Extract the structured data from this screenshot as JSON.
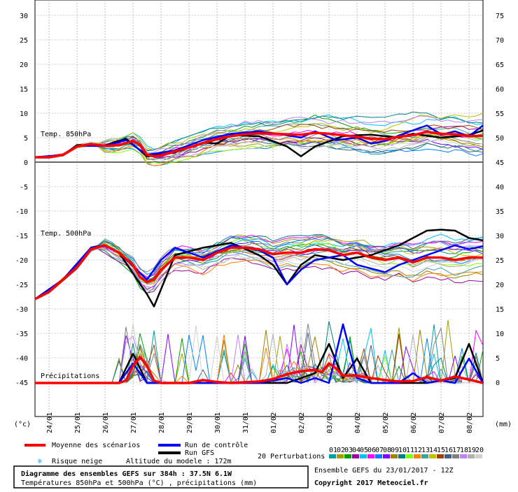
{
  "chart_data": [
    {
      "type": "line",
      "title": "Temp. 850hPa",
      "ylabel": "(°c)",
      "y_ticks": [
        0,
        5,
        10,
        15,
        20,
        25,
        30
      ],
      "x_tick_labels": [
        "24/01",
        "25/01",
        "26/01",
        "27/01",
        "28/01",
        "29/01",
        "30/01",
        "31/01",
        "01/02",
        "02/02",
        "03/02",
        "04/02",
        "05/02",
        "06/02",
        "07/02",
        "08/02"
      ],
      "x_hours": [
        0,
        384
      ],
      "series": [
        {
          "name": "Moyenne des scénarios",
          "color": "#ff0000",
          "points": [
            [
              0,
              1
            ],
            [
              12,
              1
            ],
            [
              24,
              1.5
            ],
            [
              36,
              3.2
            ],
            [
              48,
              3.7
            ],
            [
              60,
              3.3
            ],
            [
              72,
              3.5
            ],
            [
              84,
              4.3
            ],
            [
              90,
              3.5
            ],
            [
              96,
              1.5
            ],
            [
              102,
              1.2
            ],
            [
              108,
              1.4
            ],
            [
              120,
              2.2
            ],
            [
              132,
              3
            ],
            [
              144,
              3.9
            ],
            [
              156,
              4.7
            ],
            [
              168,
              5.3
            ],
            [
              180,
              5.7
            ],
            [
              192,
              5.9
            ],
            [
              204,
              5.8
            ],
            [
              216,
              5.7
            ],
            [
              228,
              5.6
            ],
            [
              240,
              6
            ],
            [
              252,
              5.8
            ],
            [
              264,
              5.5
            ],
            [
              276,
              5.2
            ],
            [
              288,
              4.8
            ],
            [
              300,
              4.7
            ],
            [
              312,
              5.2
            ],
            [
              324,
              5.5
            ],
            [
              336,
              6.2
            ],
            [
              348,
              5.8
            ],
            [
              360,
              5.7
            ],
            [
              372,
              5.3
            ],
            [
              384,
              5.4
            ]
          ]
        },
        {
          "name": "Run de contrôle",
          "color": "#0000ff",
          "points": [
            [
              0,
              1
            ],
            [
              24,
              1.5
            ],
            [
              36,
              3.3
            ],
            [
              60,
              3.3
            ],
            [
              78,
              4.5
            ],
            [
              96,
              1.5
            ],
            [
              120,
              2.4
            ],
            [
              144,
              4.5
            ],
            [
              168,
              5.8
            ],
            [
              192,
              6.3
            ],
            [
              216,
              5.5
            ],
            [
              228,
              5
            ],
            [
              240,
              6.3
            ],
            [
              258,
              4.5
            ],
            [
              276,
              5
            ],
            [
              288,
              3.8
            ],
            [
              300,
              4.3
            ],
            [
              318,
              6
            ],
            [
              336,
              7.5
            ],
            [
              348,
              5.6
            ],
            [
              360,
              6.3
            ],
            [
              372,
              5.3
            ],
            [
              384,
              7.5
            ]
          ]
        },
        {
          "name": "Run GFS",
          "color": "#000000",
          "points": [
            [
              0,
              1
            ],
            [
              24,
              1.4
            ],
            [
              36,
              3.5
            ],
            [
              60,
              3.4
            ],
            [
              78,
              4.8
            ],
            [
              96,
              1.2
            ],
            [
              120,
              2
            ],
            [
              144,
              4
            ],
            [
              156,
              3.8
            ],
            [
              168,
              5.5
            ],
            [
              192,
              5.3
            ],
            [
              216,
              3.2
            ],
            [
              228,
              1.2
            ],
            [
              240,
              3.2
            ],
            [
              264,
              5.3
            ],
            [
              276,
              5.5
            ],
            [
              288,
              5.6
            ],
            [
              312,
              5
            ],
            [
              324,
              5.8
            ],
            [
              348,
              5
            ],
            [
              372,
              5.5
            ],
            [
              384,
              6.5
            ]
          ]
        }
      ]
    },
    {
      "type": "line",
      "title": "Temp. 500hPa",
      "y_ticks": [
        -45,
        -40,
        -35,
        -30,
        -25,
        -20,
        -15,
        -10,
        -5
      ],
      "series": [
        {
          "name": "Moyenne des scénarios",
          "color": "#ff0000",
          "points": [
            [
              0,
              -28
            ],
            [
              12,
              -26.5
            ],
            [
              24,
              -24
            ],
            [
              36,
              -21.5
            ],
            [
              48,
              -17.8
            ],
            [
              60,
              -17
            ],
            [
              72,
              -18.5
            ],
            [
              84,
              -21
            ],
            [
              90,
              -23.5
            ],
            [
              96,
              -24.5
            ],
            [
              102,
              -24
            ],
            [
              108,
              -22
            ],
            [
              120,
              -19.5
            ],
            [
              132,
              -19.5
            ],
            [
              144,
              -20
            ],
            [
              156,
              -18.5
            ],
            [
              168,
              -17.5
            ],
            [
              180,
              -17.5
            ],
            [
              192,
              -17.8
            ],
            [
              204,
              -18.8
            ],
            [
              216,
              -18.5
            ],
            [
              228,
              -18.5
            ],
            [
              240,
              -17.8
            ],
            [
              252,
              -18
            ],
            [
              264,
              -19
            ],
            [
              276,
              -18.5
            ],
            [
              288,
              -19.5
            ],
            [
              300,
              -20
            ],
            [
              312,
              -19.5
            ],
            [
              324,
              -20.5
            ],
            [
              336,
              -19.5
            ],
            [
              348,
              -19.5
            ],
            [
              360,
              -20
            ],
            [
              372,
              -19.5
            ],
            [
              384,
              -19.5
            ]
          ]
        },
        {
          "name": "Run de contrôle",
          "color": "#0000ff",
          "points": [
            [
              0,
              -28
            ],
            [
              24,
              -24
            ],
            [
              48,
              -17.5
            ],
            [
              60,
              -17
            ],
            [
              72,
              -18.5
            ],
            [
              96,
              -24
            ],
            [
              108,
              -20
            ],
            [
              120,
              -17.5
            ],
            [
              144,
              -19.5
            ],
            [
              168,
              -17
            ],
            [
              192,
              -18
            ],
            [
              204,
              -19.5
            ],
            [
              216,
              -25
            ],
            [
              228,
              -22
            ],
            [
              240,
              -20
            ],
            [
              264,
              -19
            ],
            [
              276,
              -21
            ],
            [
              300,
              -22.5
            ],
            [
              312,
              -21
            ],
            [
              336,
              -19
            ],
            [
              360,
              -17
            ],
            [
              372,
              -17.8
            ],
            [
              384,
              -17.2
            ]
          ]
        },
        {
          "name": "Run GFS",
          "color": "#000000",
          "points": [
            [
              0,
              -28
            ],
            [
              24,
              -24
            ],
            [
              48,
              -17.5
            ],
            [
              60,
              -17
            ],
            [
              72,
              -18.5
            ],
            [
              96,
              -27
            ],
            [
              102,
              -29.5
            ],
            [
              120,
              -19
            ],
            [
              144,
              -17.5
            ],
            [
              168,
              -16.5
            ],
            [
              192,
              -19
            ],
            [
              204,
              -21
            ],
            [
              216,
              -25
            ],
            [
              228,
              -21
            ],
            [
              240,
              -19
            ],
            [
              264,
              -20
            ],
            [
              288,
              -19
            ],
            [
              312,
              -17
            ],
            [
              336,
              -14
            ],
            [
              348,
              -13.8
            ],
            [
              360,
              -14
            ],
            [
              372,
              -15.5
            ],
            [
              384,
              -16
            ]
          ]
        }
      ]
    },
    {
      "type": "line",
      "title": "Précipitations",
      "ylabel": "(mm)",
      "y_ticks": [
        0,
        5,
        10,
        15,
        20,
        25,
        30,
        35,
        40,
        45,
        50,
        55,
        60,
        65,
        70,
        75
      ],
      "series": [
        {
          "name": "Moyenne des scénarios",
          "color": "#ff0000",
          "points": [
            [
              0,
              0
            ],
            [
              60,
              0
            ],
            [
              72,
              0
            ],
            [
              78,
              0.5
            ],
            [
              84,
              3.5
            ],
            [
              90,
              5.3
            ],
            [
              96,
              3.5
            ],
            [
              102,
              0.5
            ],
            [
              108,
              0
            ],
            [
              132,
              0
            ],
            [
              144,
              0.6
            ],
            [
              156,
              0.2
            ],
            [
              168,
              0
            ],
            [
              192,
              0.3
            ],
            [
              204,
              0.8
            ],
            [
              216,
              1.8
            ],
            [
              228,
              2.4
            ],
            [
              240,
              2.7
            ],
            [
              246,
              2.2
            ],
            [
              252,
              4
            ],
            [
              258,
              3
            ],
            [
              264,
              1.5
            ],
            [
              276,
              1.5
            ],
            [
              288,
              1
            ],
            [
              300,
              0.6
            ],
            [
              312,
              0.3
            ],
            [
              324,
              0.4
            ],
            [
              336,
              1.2
            ],
            [
              348,
              0.5
            ],
            [
              360,
              1.3
            ],
            [
              372,
              0.7
            ],
            [
              384,
              0
            ]
          ]
        },
        {
          "name": "Run de contrôle",
          "color": "#0000ff",
          "points": [
            [
              0,
              0
            ],
            [
              72,
              0
            ],
            [
              84,
              4
            ],
            [
              96,
              0
            ],
            [
              168,
              0
            ],
            [
              192,
              0
            ],
            [
              216,
              1
            ],
            [
              228,
              0
            ],
            [
              240,
              1
            ],
            [
              252,
              0
            ],
            [
              264,
              12
            ],
            [
              276,
              1
            ],
            [
              288,
              0
            ],
            [
              312,
              0
            ],
            [
              324,
              2
            ],
            [
              336,
              0
            ],
            [
              348,
              0.5
            ],
            [
              360,
              0
            ],
            [
              372,
              5
            ],
            [
              384,
              0
            ]
          ]
        },
        {
          "name": "Run GFS",
          "color": "#000000",
          "points": [
            [
              0,
              0
            ],
            [
              72,
              0
            ],
            [
              84,
              6
            ],
            [
              96,
              0
            ],
            [
              168,
              0
            ],
            [
              216,
              0
            ],
            [
              240,
              2
            ],
            [
              252,
              8
            ],
            [
              264,
              1
            ],
            [
              276,
              5
            ],
            [
              288,
              0
            ],
            [
              336,
              0
            ],
            [
              360,
              1
            ],
            [
              372,
              8
            ],
            [
              384,
              0
            ]
          ]
        }
      ]
    }
  ],
  "axis": {
    "left_unit": "(°c)",
    "right_unit": "(mm)",
    "left_ticks": [
      "30",
      "25",
      "20",
      "15",
      "10",
      "5",
      "0",
      "-5",
      "-10",
      "-15",
      "-20",
      "-25",
      "-30",
      "-35",
      "-40",
      "-45"
    ],
    "right_ticks": [
      "75",
      "70",
      "65",
      "60",
      "55",
      "50",
      "45",
      "40",
      "35",
      "30",
      "25",
      "20",
      "15",
      "10",
      "5",
      "0"
    ]
  },
  "labels": {
    "t850": "Temp. 850hPa",
    "t500": "Temp. 500hPa",
    "precip": "Précipitations"
  },
  "legend": {
    "mean": "Moyenne des scénarios",
    "control": "Run de contrôle",
    "gfs": "Run GFS",
    "perturbations": "20 Perturbations",
    "snow": "Risque neige",
    "altitude": "Altitude du modele : 172m",
    "pert_numbers": [
      "01",
      "02",
      "03",
      "04",
      "05",
      "06",
      "07",
      "08",
      "09",
      "10",
      "11",
      "12",
      "13",
      "14",
      "15",
      "16",
      "17",
      "18",
      "19",
      "20"
    ],
    "pert_colors": [
      "#00a0a0",
      "#a0a000",
      "#00a000",
      "#a000a0",
      "#00c0ff",
      "#ff00ff",
      "#0080ff",
      "#8000ff",
      "#a08000",
      "#008080",
      "#80ff00",
      "#ff8000",
      "#40a0a0",
      "#c0c000",
      "#a04000",
      "#406080",
      "#808080",
      "#c080ff",
      "#b0b0b0",
      "#d0d0d0"
    ]
  },
  "info": {
    "title": "Diagramme des ensembles GEFS sur 384h : 37.5N 6.1W",
    "subtitle": "Températures 850hPa et 500hPa (°C) , précipitations (mm)",
    "ensemble": "Ensemble GEFS du 23/01/2017 - 12Z",
    "copyright": "Copyright 2017 Meteociel.fr"
  }
}
